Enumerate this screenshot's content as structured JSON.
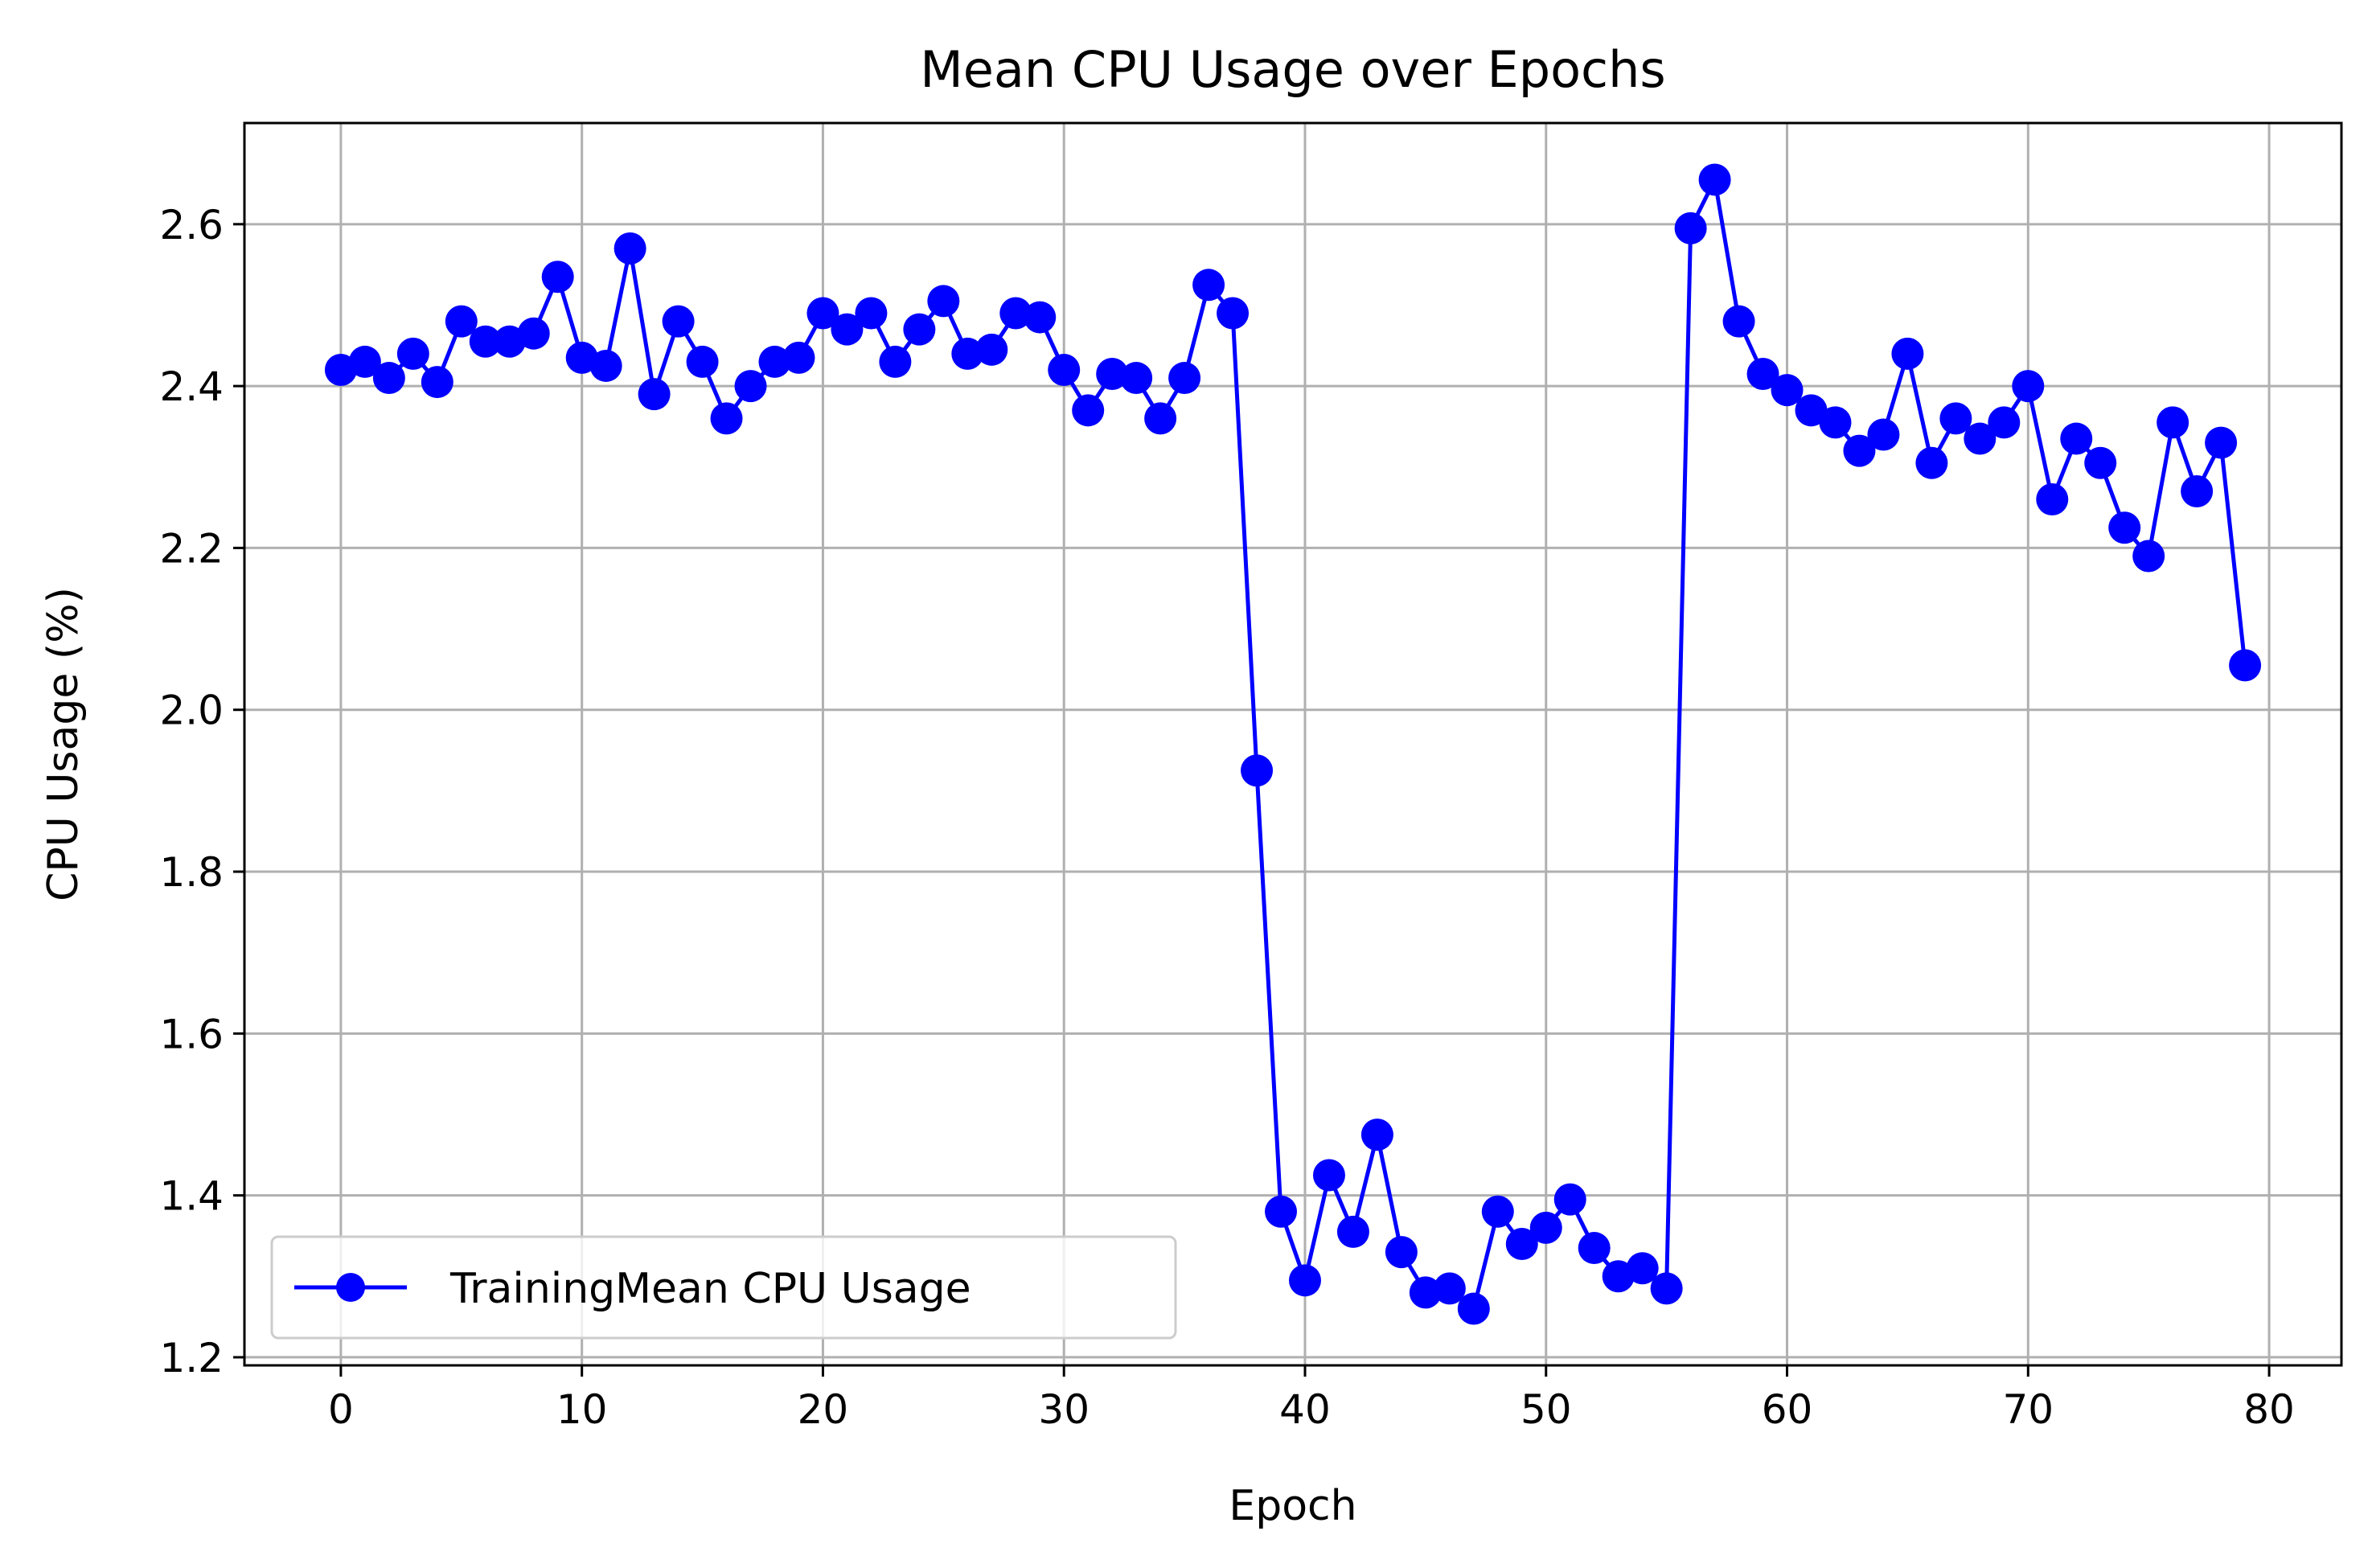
{
  "chart_data": {
    "type": "line",
    "title": "Mean CPU Usage over Epochs",
    "xlabel": "Epoch",
    "ylabel": "CPU Usage (%)",
    "xlim": [
      -4,
      83
    ],
    "ylim": [
      1.19,
      2.725
    ],
    "xticks": [
      0,
      10,
      20,
      30,
      40,
      50,
      60,
      70,
      80
    ],
    "yticks": [
      1.2,
      1.4,
      1.6,
      1.8,
      2.0,
      2.2,
      2.4,
      2.6
    ],
    "xtick_labels": [
      "0",
      "10",
      "20",
      "30",
      "40",
      "50",
      "60",
      "70",
      "80"
    ],
    "ytick_labels": [
      "1.2",
      "1.4",
      "1.6",
      "1.8",
      "2.0",
      "2.2",
      "2.4",
      "2.6"
    ],
    "grid": true,
    "legend_position": "lower-left",
    "series": [
      {
        "name": "TrainingMean CPU Usage",
        "color": "#0000ff",
        "marker": "circle",
        "x": [
          0,
          1,
          2,
          3,
          4,
          5,
          6,
          7,
          8,
          9,
          10,
          11,
          12,
          13,
          14,
          15,
          16,
          17,
          18,
          19,
          20,
          21,
          22,
          23,
          24,
          25,
          26,
          27,
          28,
          29,
          30,
          31,
          32,
          33,
          34,
          35,
          36,
          37,
          38,
          39,
          40,
          41,
          42,
          43,
          44,
          45,
          46,
          47,
          48,
          49,
          50,
          51,
          52,
          53,
          54,
          55,
          56,
          57,
          58,
          59,
          60,
          61,
          62,
          63,
          64,
          65,
          66,
          67,
          68,
          69,
          70,
          71,
          72,
          73,
          74,
          75,
          76,
          77,
          78,
          79
        ],
        "y": [
          2.42,
          2.43,
          2.41,
          2.44,
          2.405,
          2.48,
          2.455,
          2.455,
          2.465,
          2.535,
          2.435,
          2.425,
          2.57,
          2.39,
          2.48,
          2.43,
          2.36,
          2.4,
          2.43,
          2.435,
          2.49,
          2.47,
          2.49,
          2.43,
          2.47,
          2.505,
          2.44,
          2.445,
          2.49,
          2.485,
          2.42,
          2.37,
          2.415,
          2.41,
          2.36,
          2.41,
          2.525,
          2.49,
          1.925,
          1.38,
          1.295,
          1.425,
          1.355,
          1.475,
          1.33,
          1.28,
          1.285,
          1.26,
          1.38,
          1.34,
          1.36,
          1.395,
          1.335,
          1.3,
          1.31,
          1.285,
          2.595,
          2.655,
          2.48,
          2.415,
          2.395,
          2.37,
          2.355,
          2.32,
          2.34,
          2.44,
          2.305,
          2.36,
          2.335,
          2.355,
          2.4,
          2.26,
          2.335,
          2.305,
          2.225,
          2.19,
          2.355,
          2.27,
          2.33,
          2.055
        ]
      }
    ]
  }
}
